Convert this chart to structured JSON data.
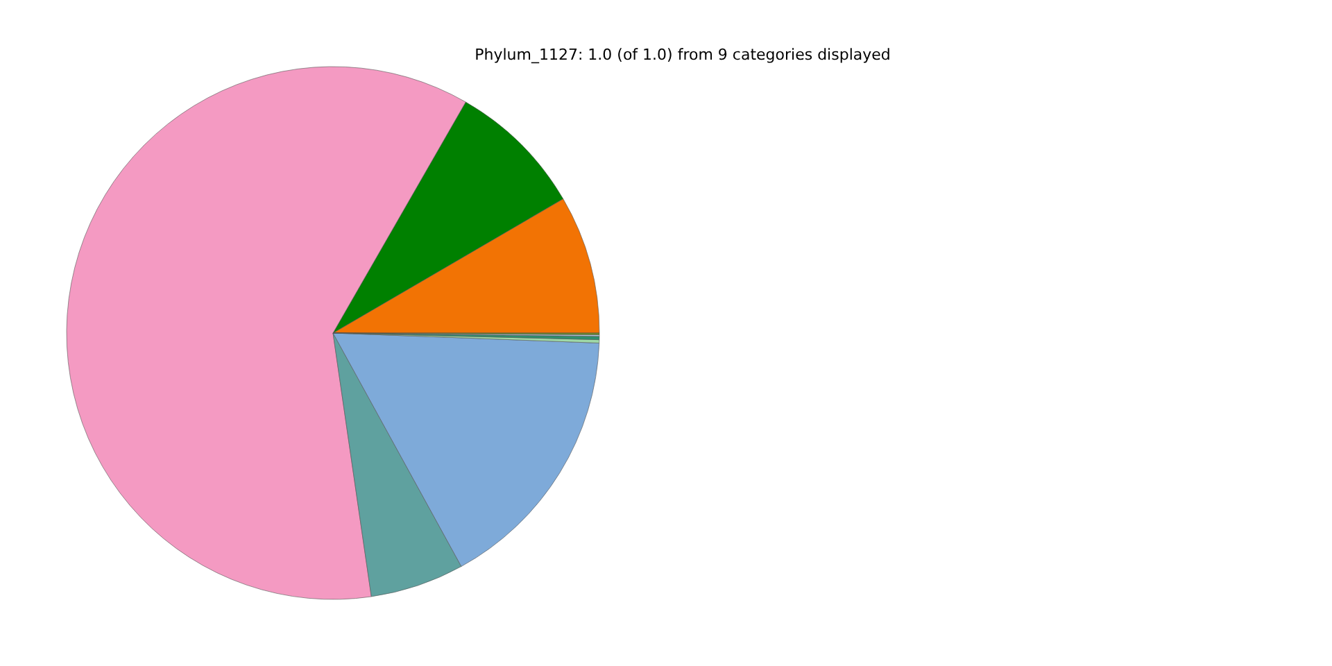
{
  "chart_data": {
    "type": "pie",
    "title": "Phylum_1127: 1.0 (of 1.0) from 9 categories displayed",
    "categories": [
      null,
      null,
      null,
      null,
      null,
      null,
      null,
      null,
      null
    ],
    "values": [
      8.4,
      8.3,
      60.6,
      5.7,
      16.4,
      0.2,
      0.2,
      0.1,
      0.1
    ],
    "colors": [
      "#f27304",
      "#008000",
      "#f49ac2",
      "#5fa19f",
      "#7eaad9",
      "#9ed9a8",
      "#2f8f6f",
      "#b0c4de",
      "#6b8e23"
    ]
  }
}
